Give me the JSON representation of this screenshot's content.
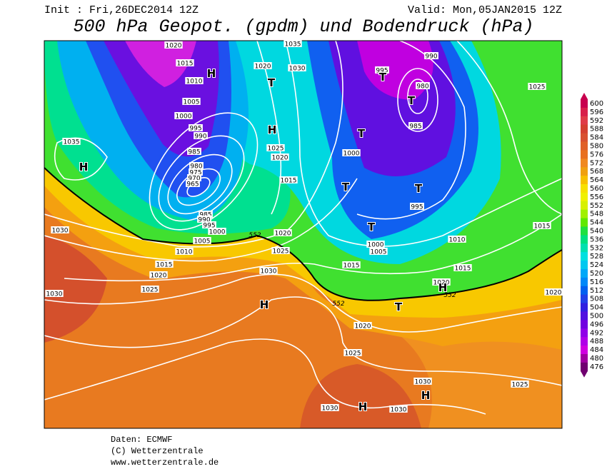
{
  "header": {
    "init": "Init : Fri,26DEC2014 12Z",
    "valid": "Valid: Mon,05JAN2015 12Z",
    "title": "500 hPa Geopot. (gpdm) und Bodendruck (hPa)"
  },
  "colorbar": {
    "labels": [
      600,
      596,
      592,
      588,
      584,
      580,
      576,
      572,
      568,
      564,
      560,
      556,
      552,
      548,
      544,
      540,
      536,
      532,
      528,
      524,
      520,
      516,
      512,
      508,
      504,
      500,
      496,
      492,
      488,
      484,
      480,
      476
    ],
    "colors": [
      "#c8004e",
      "#d8204a",
      "#e03c48",
      "#d44030",
      "#d85030",
      "#e06028",
      "#e87020",
      "#f08820",
      "#f0a010",
      "#f8c000",
      "#f8e000",
      "#f0f000",
      "#d8f000",
      "#a0f000",
      "#60e800",
      "#20e040",
      "#00e080",
      "#00e0b0",
      "#00e0e0",
      "#00c8f0",
      "#00a8f8",
      "#0088f8",
      "#0060f0",
      "#2040e8",
      "#3020e0",
      "#5010e0",
      "#7000e0",
      "#9000e8",
      "#b000e8",
      "#d000e0",
      "#a000a0",
      "#700070"
    ]
  },
  "map": {
    "labels": [
      "1020",
      "1015",
      "1010",
      "1005",
      "1000",
      "995",
      "990",
      "985",
      "980",
      "975",
      "970",
      "965",
      "985",
      "990",
      "995",
      "1000",
      "1005",
      "1010",
      "1015",
      "1020",
      "1025",
      "1030",
      "1030",
      "1035",
      "1035",
      "1020",
      "1030",
      "1025",
      "1020",
      "1015",
      "1020",
      "1025",
      "1030",
      "1000",
      "995",
      "990",
      "980",
      "985",
      "995",
      "1000",
      "1005",
      "1010",
      "1015",
      "1015",
      "1020",
      "1025",
      "1015",
      "1020",
      "1020",
      "1025",
      "1030",
      "1025",
      "1030",
      "1030",
      "552",
      "552",
      "552",
      "H",
      "H",
      "H",
      "H",
      "H",
      "H",
      "H",
      "T",
      "T",
      "T",
      "T",
      "T",
      "T",
      "T",
      "T"
    ]
  },
  "footer": {
    "source": "Daten: ECMWF",
    "copyright": "(C) Wetterzentrale",
    "url": "www.wetterzentrale.de"
  }
}
